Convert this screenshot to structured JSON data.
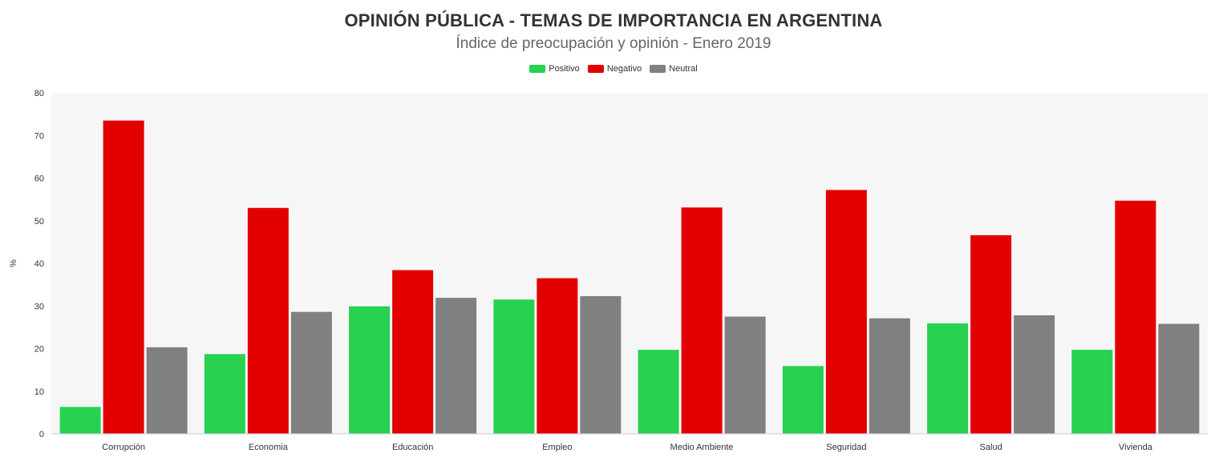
{
  "chart_data": {
    "type": "bar",
    "title": "OPINIÓN PÚBLICA - TEMAS DE IMPORTANCIA EN ARGENTINA",
    "subtitle": "Índice de preocupación y opinión - Enero 2019",
    "xlabel": "",
    "ylabel": "%",
    "ylim": [
      0,
      80
    ],
    "yticks": [
      0,
      10,
      20,
      30,
      40,
      50,
      60,
      70,
      80
    ],
    "legend_position": "top-center",
    "grid": false,
    "categories": [
      "Corrupción",
      "Economia",
      "Educación",
      "Empleo",
      "Medio Ambiente",
      "Seguridad",
      "Salud",
      "Vivienda"
    ],
    "series": [
      {
        "name": "Positivo",
        "color": "#28d14f",
        "values": [
          6.3,
          18.7,
          29.9,
          31.5,
          19.7,
          15.9,
          25.9,
          19.7
        ]
      },
      {
        "name": "Negativo",
        "color": "#e30000",
        "values": [
          73.5,
          53.0,
          38.4,
          36.5,
          53.1,
          57.2,
          46.6,
          54.7
        ]
      },
      {
        "name": "Neutral",
        "color": "#808080",
        "values": [
          20.3,
          28.6,
          31.9,
          32.3,
          27.5,
          27.1,
          27.8,
          25.8
        ]
      }
    ],
    "plot_background": "#f6f6f6"
  }
}
